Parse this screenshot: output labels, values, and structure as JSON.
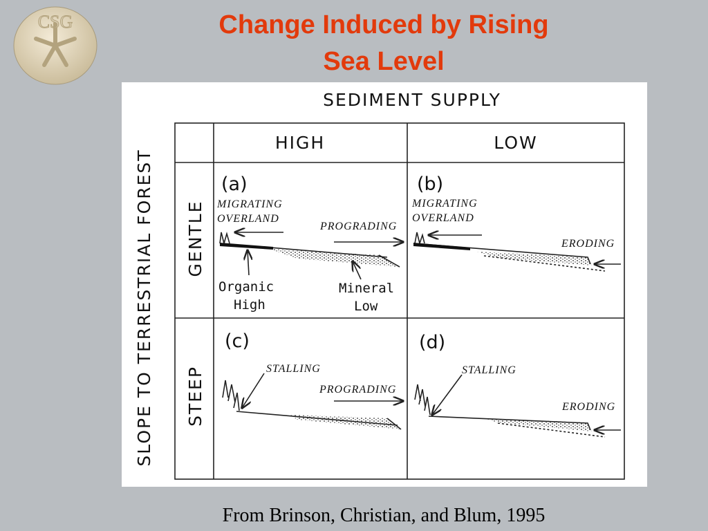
{
  "logo": {
    "text": "CSG"
  },
  "title": {
    "lines": [
      "Change Induced by Rising",
      "Sea Level"
    ]
  },
  "diagram": {
    "header": "SEDIMENT SUPPLY",
    "columns": [
      "HIGH",
      "LOW"
    ],
    "row_axis": "SLOPE TO TERRESTRIAL FOREST",
    "rows": [
      "GENTLE",
      "STEEP"
    ],
    "panels": [
      {
        "label": "(a)",
        "landward": [
          "MIGRATING",
          "OVERLAND"
        ],
        "seaward": "PROGRADING",
        "notes": [
          [
            "Organic",
            "High"
          ],
          [
            "Mineral",
            "Low"
          ]
        ]
      },
      {
        "label": "(b)",
        "landward": [
          "MIGRATING",
          "OVERLAND"
        ],
        "seaward": "ERODING"
      },
      {
        "label": "(c)",
        "landward": [
          "STALLING"
        ],
        "seaward": "PROGRADING"
      },
      {
        "label": "(d)",
        "landward": [
          "STALLING"
        ],
        "seaward": "ERODING"
      }
    ]
  },
  "caption": "From Brinson, Christian, and Blum, 1995"
}
